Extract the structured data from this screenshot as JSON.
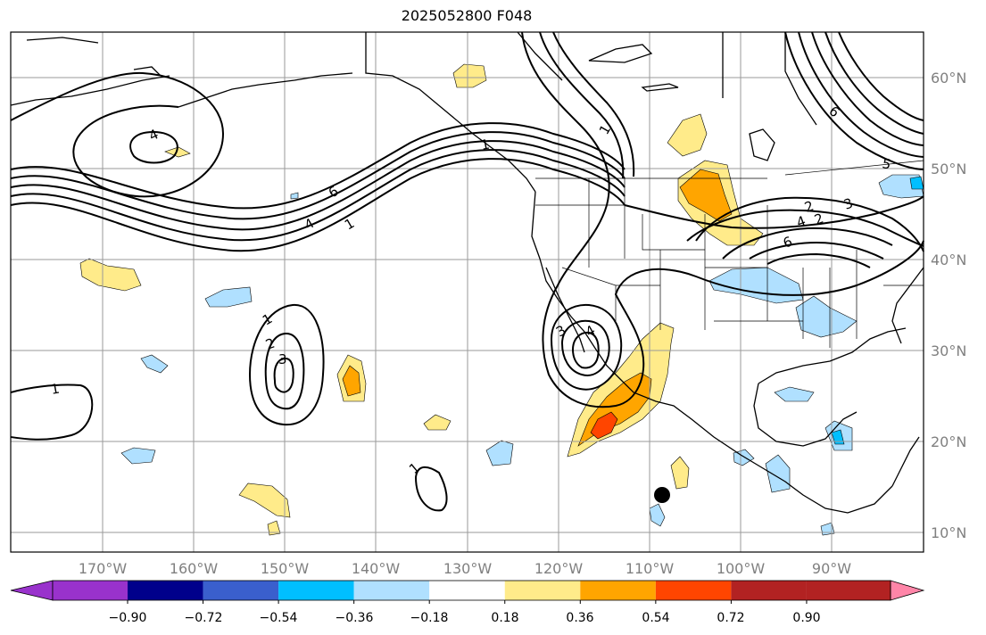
{
  "title": "2025052800 F048",
  "chart_data": {
    "type": "contour-map",
    "title": "2025052800 F048",
    "lon_ticks": [
      "170°W",
      "160°W",
      "150°W",
      "140°W",
      "130°W",
      "120°W",
      "110°W",
      "100°W",
      "90°W"
    ],
    "lat_ticks": [
      "60°N",
      "50°N",
      "40°N",
      "30°N",
      "20°N",
      "10°N"
    ],
    "colorbar": {
      "ticks": [
        "−0.90",
        "−0.72",
        "−0.54",
        "−0.36",
        "−0.18",
        "0.18",
        "0.36",
        "0.54",
        "0.72",
        "0.90"
      ],
      "colors": [
        "#9932CC",
        "#00008B",
        "#3A5FCD",
        "#00BFFF",
        "#B0E0FF",
        "#FFFFFF",
        "#FFEB8A",
        "#FFA500",
        "#FF4500",
        "#B22222",
        "#FF85A8"
      ]
    },
    "contour_labels": [
      "4",
      "6",
      "4",
      "1",
      "1",
      "2",
      "3",
      "1",
      "1",
      "3",
      "4",
      "1",
      "2",
      "4",
      "6",
      "2",
      "3",
      "5",
      "6",
      "1"
    ]
  }
}
